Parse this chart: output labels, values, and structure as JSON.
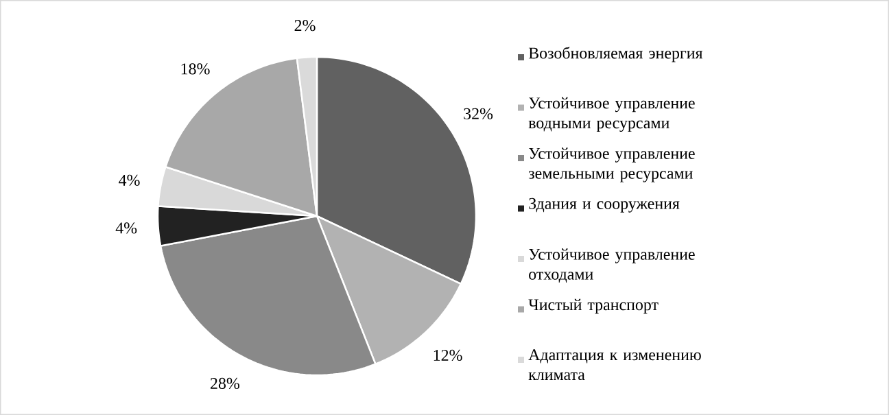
{
  "chart_data": {
    "type": "pie",
    "legend": "right",
    "categories": [
      "Возобновляемая энергия",
      "Устойчивое управление водными ресурсами",
      "Устойчивое управление земельными ресурсами",
      "Здания и сооружения",
      "Устойчивое управление отходами",
      "Чистый транспорт",
      "Адаптация к изменению климата"
    ],
    "values": [
      32,
      12,
      28,
      4,
      4,
      18,
      2
    ],
    "value_labels": [
      "32%",
      "12%",
      "28%",
      "4%",
      "4%",
      "18%",
      "2%"
    ],
    "colors": [
      "#616161",
      "#b2b2b2",
      "#898989",
      "#222222",
      "#d9d9d9",
      "#a8a8a8",
      "#dadada"
    ]
  }
}
